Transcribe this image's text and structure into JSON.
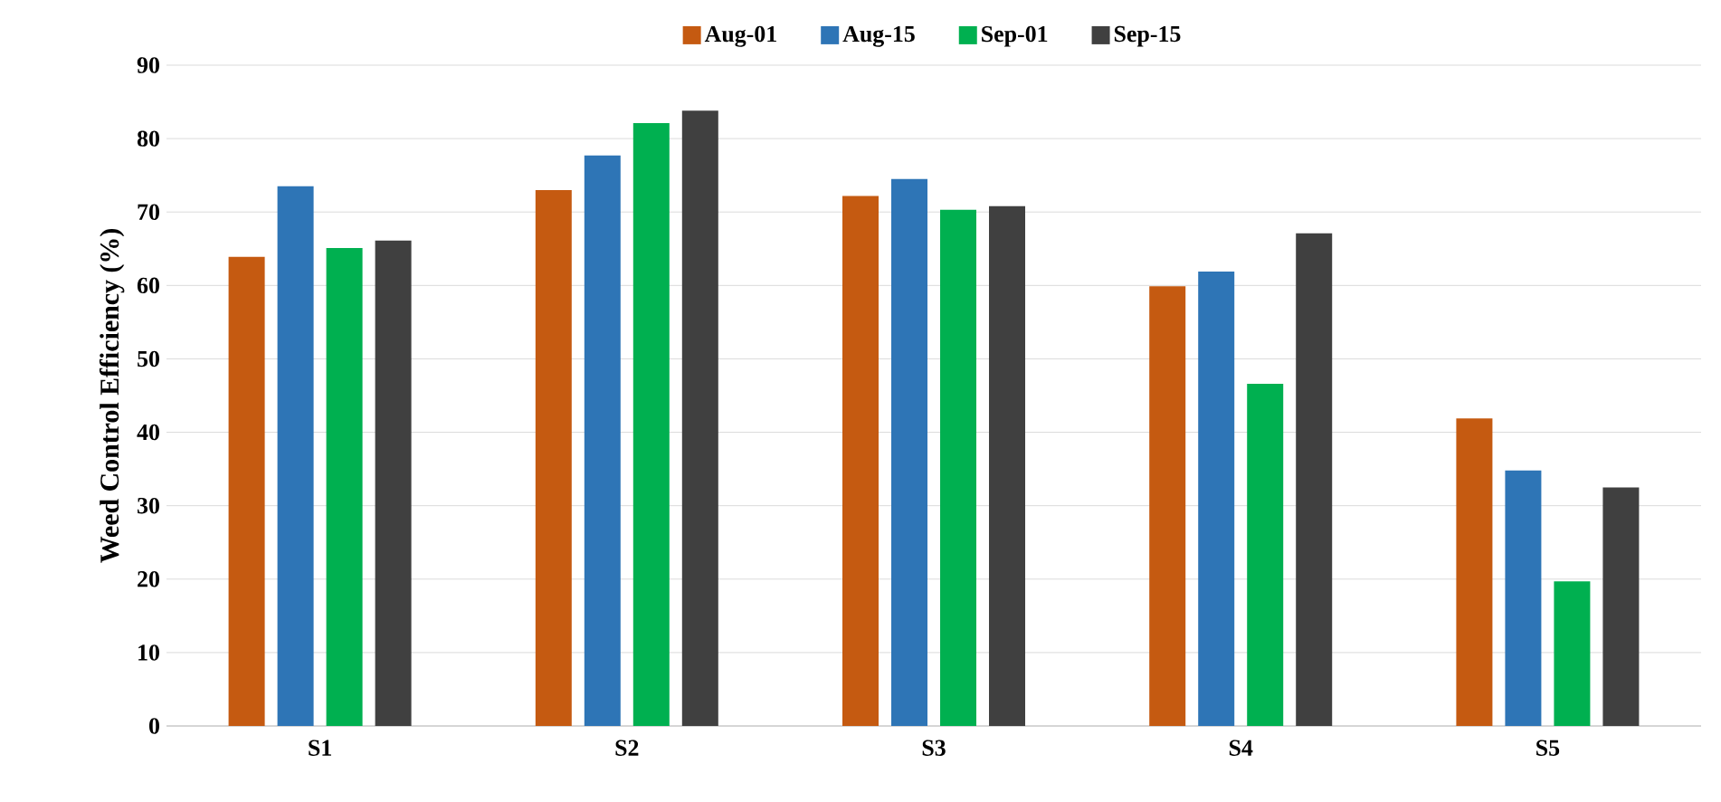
{
  "chart_data": {
    "type": "bar",
    "ylabel": "Weed  Control Efficiency (%)",
    "categories": [
      "S1",
      "S2",
      "S3",
      "S4",
      "S5"
    ],
    "series": [
      {
        "name": "Aug-01",
        "color": "#c55a11",
        "values": [
          63.9,
          73,
          72.2,
          59.9,
          41.9
        ]
      },
      {
        "name": "Aug-15",
        "color": "#2e75b6",
        "values": [
          73.5,
          77.7,
          74.5,
          61.9,
          34.8
        ]
      },
      {
        "name": "Sep-01",
        "color": "#00b050",
        "values": [
          65.1,
          82.1,
          70.3,
          46.6,
          19.7
        ]
      },
      {
        "name": "Sep-15",
        "color": "#404040",
        "values": [
          66.1,
          83.8,
          70.8,
          67.1,
          32.5
        ]
      }
    ],
    "ylim": [
      0,
      90
    ],
    "yticks": [
      0,
      10,
      20,
      30,
      40,
      50,
      60,
      70,
      80,
      90
    ],
    "grid": "y",
    "legend": "top"
  }
}
